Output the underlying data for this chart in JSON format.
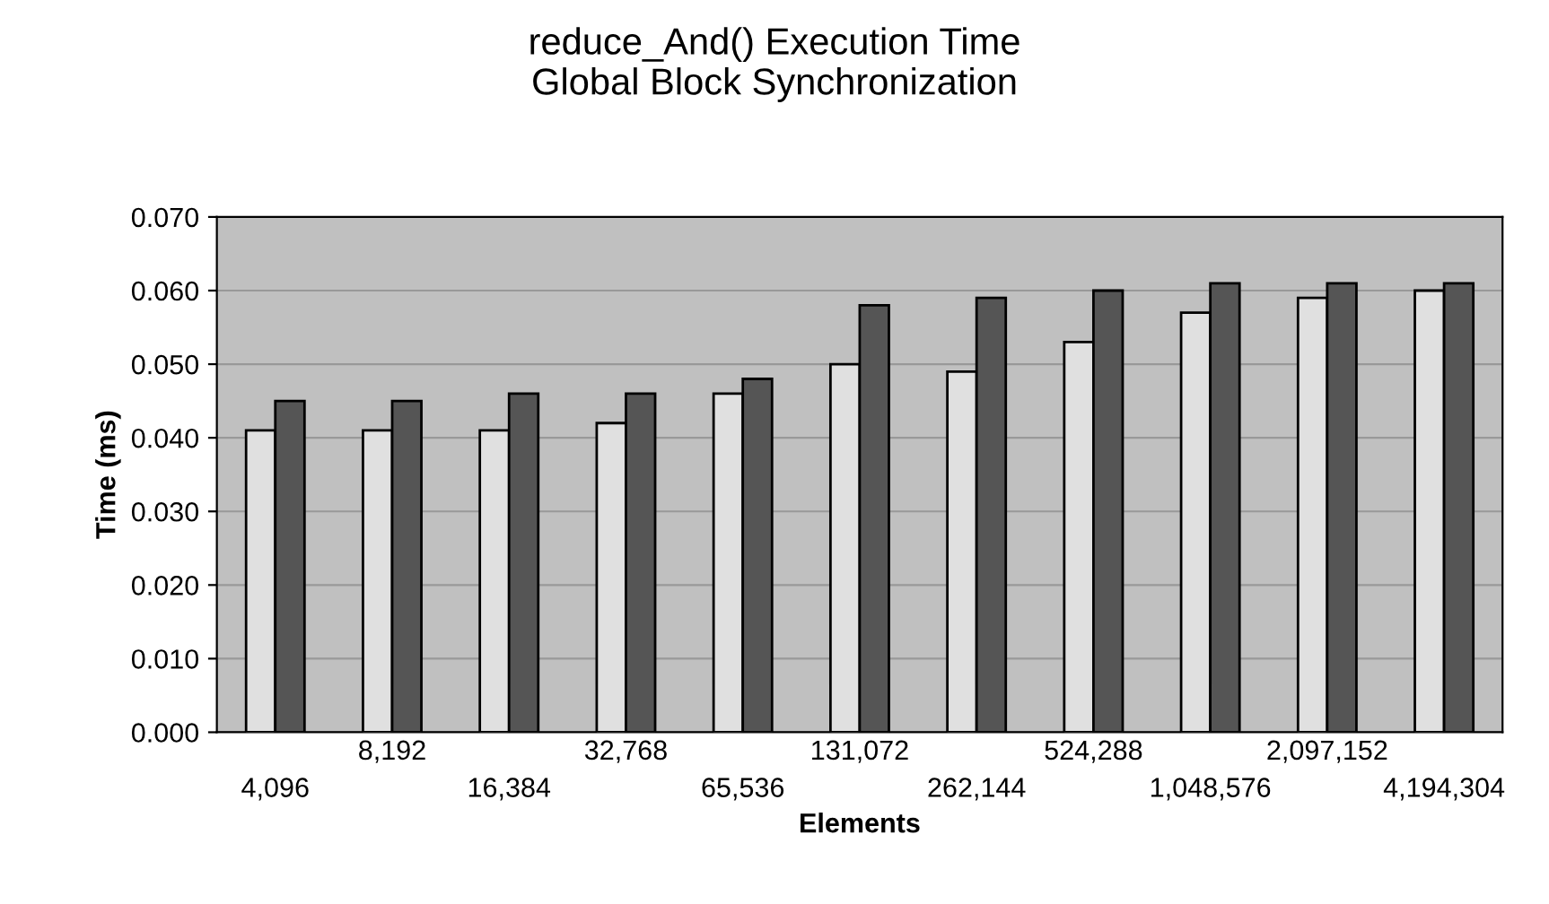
{
  "chart_data": {
    "type": "bar",
    "title": "reduce_And() Execution Time\nGlobal Block Synchronization",
    "xlabel": "Elements",
    "ylabel": "Time (ms)",
    "categories": [
      "4,096",
      "8,192",
      "16,384",
      "32,768",
      "65,536",
      "131,072",
      "262,144",
      "524,288",
      "1,048,576",
      "2,097,152",
      "4,194,304"
    ],
    "series": [
      {
        "color": "#e0e0e0",
        "values": [
          0.041,
          0.041,
          0.041,
          0.042,
          0.046,
          0.05,
          0.049,
          0.053,
          0.057,
          0.059,
          0.06
        ]
      },
      {
        "color": "#555555",
        "values": [
          0.045,
          0.045,
          0.046,
          0.046,
          0.048,
          0.058,
          0.059,
          0.06,
          0.061,
          0.061,
          0.061
        ]
      }
    ],
    "ylim": [
      0,
      0.07
    ],
    "yticks": [
      {
        "value": 0,
        "label": "0.000"
      },
      {
        "value": 0.01,
        "label": "0.010"
      },
      {
        "value": 0.02,
        "label": "0.020"
      },
      {
        "value": 0.03,
        "label": "0.030"
      },
      {
        "value": 0.04,
        "label": "0.040"
      },
      {
        "value": 0.05,
        "label": "0.050"
      },
      {
        "value": 0.06,
        "label": "0.060"
      },
      {
        "value": 0.07,
        "label": "0.070"
      }
    ],
    "grid": "y"
  }
}
